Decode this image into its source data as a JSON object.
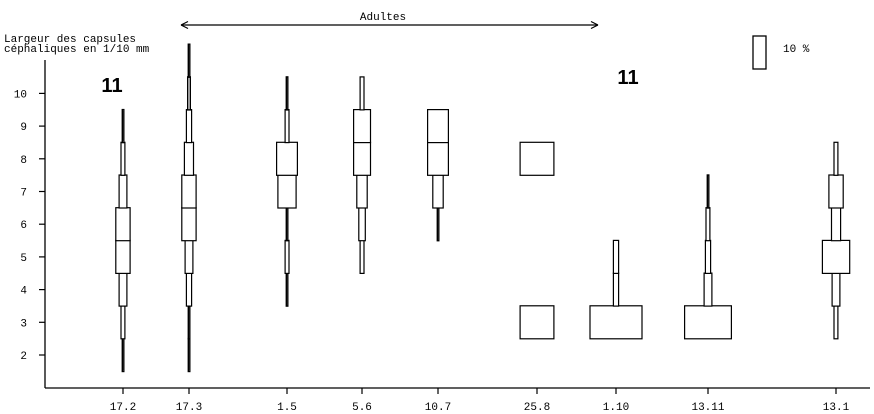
{
  "chart_data": {
    "type": "kite-diagram",
    "y_label_line1": "Largeur des capsules",
    "y_label_line2": "céphaliques en 1/10 mm",
    "ylim": [
      1.5,
      11
    ],
    "yticks": [
      "2",
      "3",
      "4",
      "5",
      "6",
      "7",
      "8",
      "9",
      "10"
    ],
    "scale_label": "10 %",
    "adults_label": "Adultes",
    "sample_size_labels": [
      "11",
      "11"
    ],
    "categories": [
      "17.2",
      "17.3",
      "1.5",
      "5.6",
      "10.7",
      "25.8",
      "1.10",
      "13.11",
      "13.1"
    ],
    "series": [
      {
        "name": "17.2",
        "classes": [
          [
            2,
            0.5
          ],
          [
            3,
            3
          ],
          [
            4,
            6
          ],
          [
            5,
            11
          ],
          [
            6,
            11
          ],
          [
            7,
            6
          ],
          [
            8,
            3
          ],
          [
            9,
            1
          ]
        ]
      },
      {
        "name": "17.3",
        "classes": [
          [
            2,
            0.5
          ],
          [
            3,
            0.5
          ],
          [
            4,
            4
          ],
          [
            5,
            6
          ],
          [
            6,
            11
          ],
          [
            7,
            11
          ],
          [
            8,
            7
          ],
          [
            9,
            4
          ],
          [
            10,
            2
          ],
          [
            11,
            1
          ]
        ]
      },
      {
        "name": "1.5",
        "classes": [
          [
            4,
            1
          ],
          [
            5,
            3
          ],
          [
            6,
            1
          ],
          [
            7,
            14
          ],
          [
            8,
            16
          ],
          [
            9,
            3
          ],
          [
            10,
            1
          ]
        ]
      },
      {
        "name": "5.6",
        "classes": [
          [
            5,
            3
          ],
          [
            6,
            5
          ],
          [
            7,
            8
          ],
          [
            8,
            13
          ],
          [
            9,
            13
          ],
          [
            10,
            3
          ]
        ]
      },
      {
        "name": "10.7",
        "classes": [
          [
            6,
            1
          ],
          [
            7,
            8
          ],
          [
            8,
            16
          ],
          [
            9,
            16
          ]
        ]
      },
      {
        "name": "25.8",
        "classes": [
          [
            3,
            26
          ],
          [
            8,
            26
          ]
        ]
      },
      {
        "name": "1.10",
        "classes": [
          [
            3,
            40
          ],
          [
            4,
            4
          ],
          [
            5,
            4
          ]
        ]
      },
      {
        "name": "13.11",
        "classes": [
          [
            3,
            36
          ],
          [
            4,
            6
          ],
          [
            5,
            4
          ],
          [
            6,
            3
          ],
          [
            7,
            1
          ]
        ]
      },
      {
        "name": "13.1",
        "classes": [
          [
            3,
            3
          ],
          [
            4,
            6
          ],
          [
            5,
            21
          ],
          [
            6,
            7
          ],
          [
            7,
            11
          ],
          [
            8,
            3
          ]
        ]
      }
    ]
  }
}
